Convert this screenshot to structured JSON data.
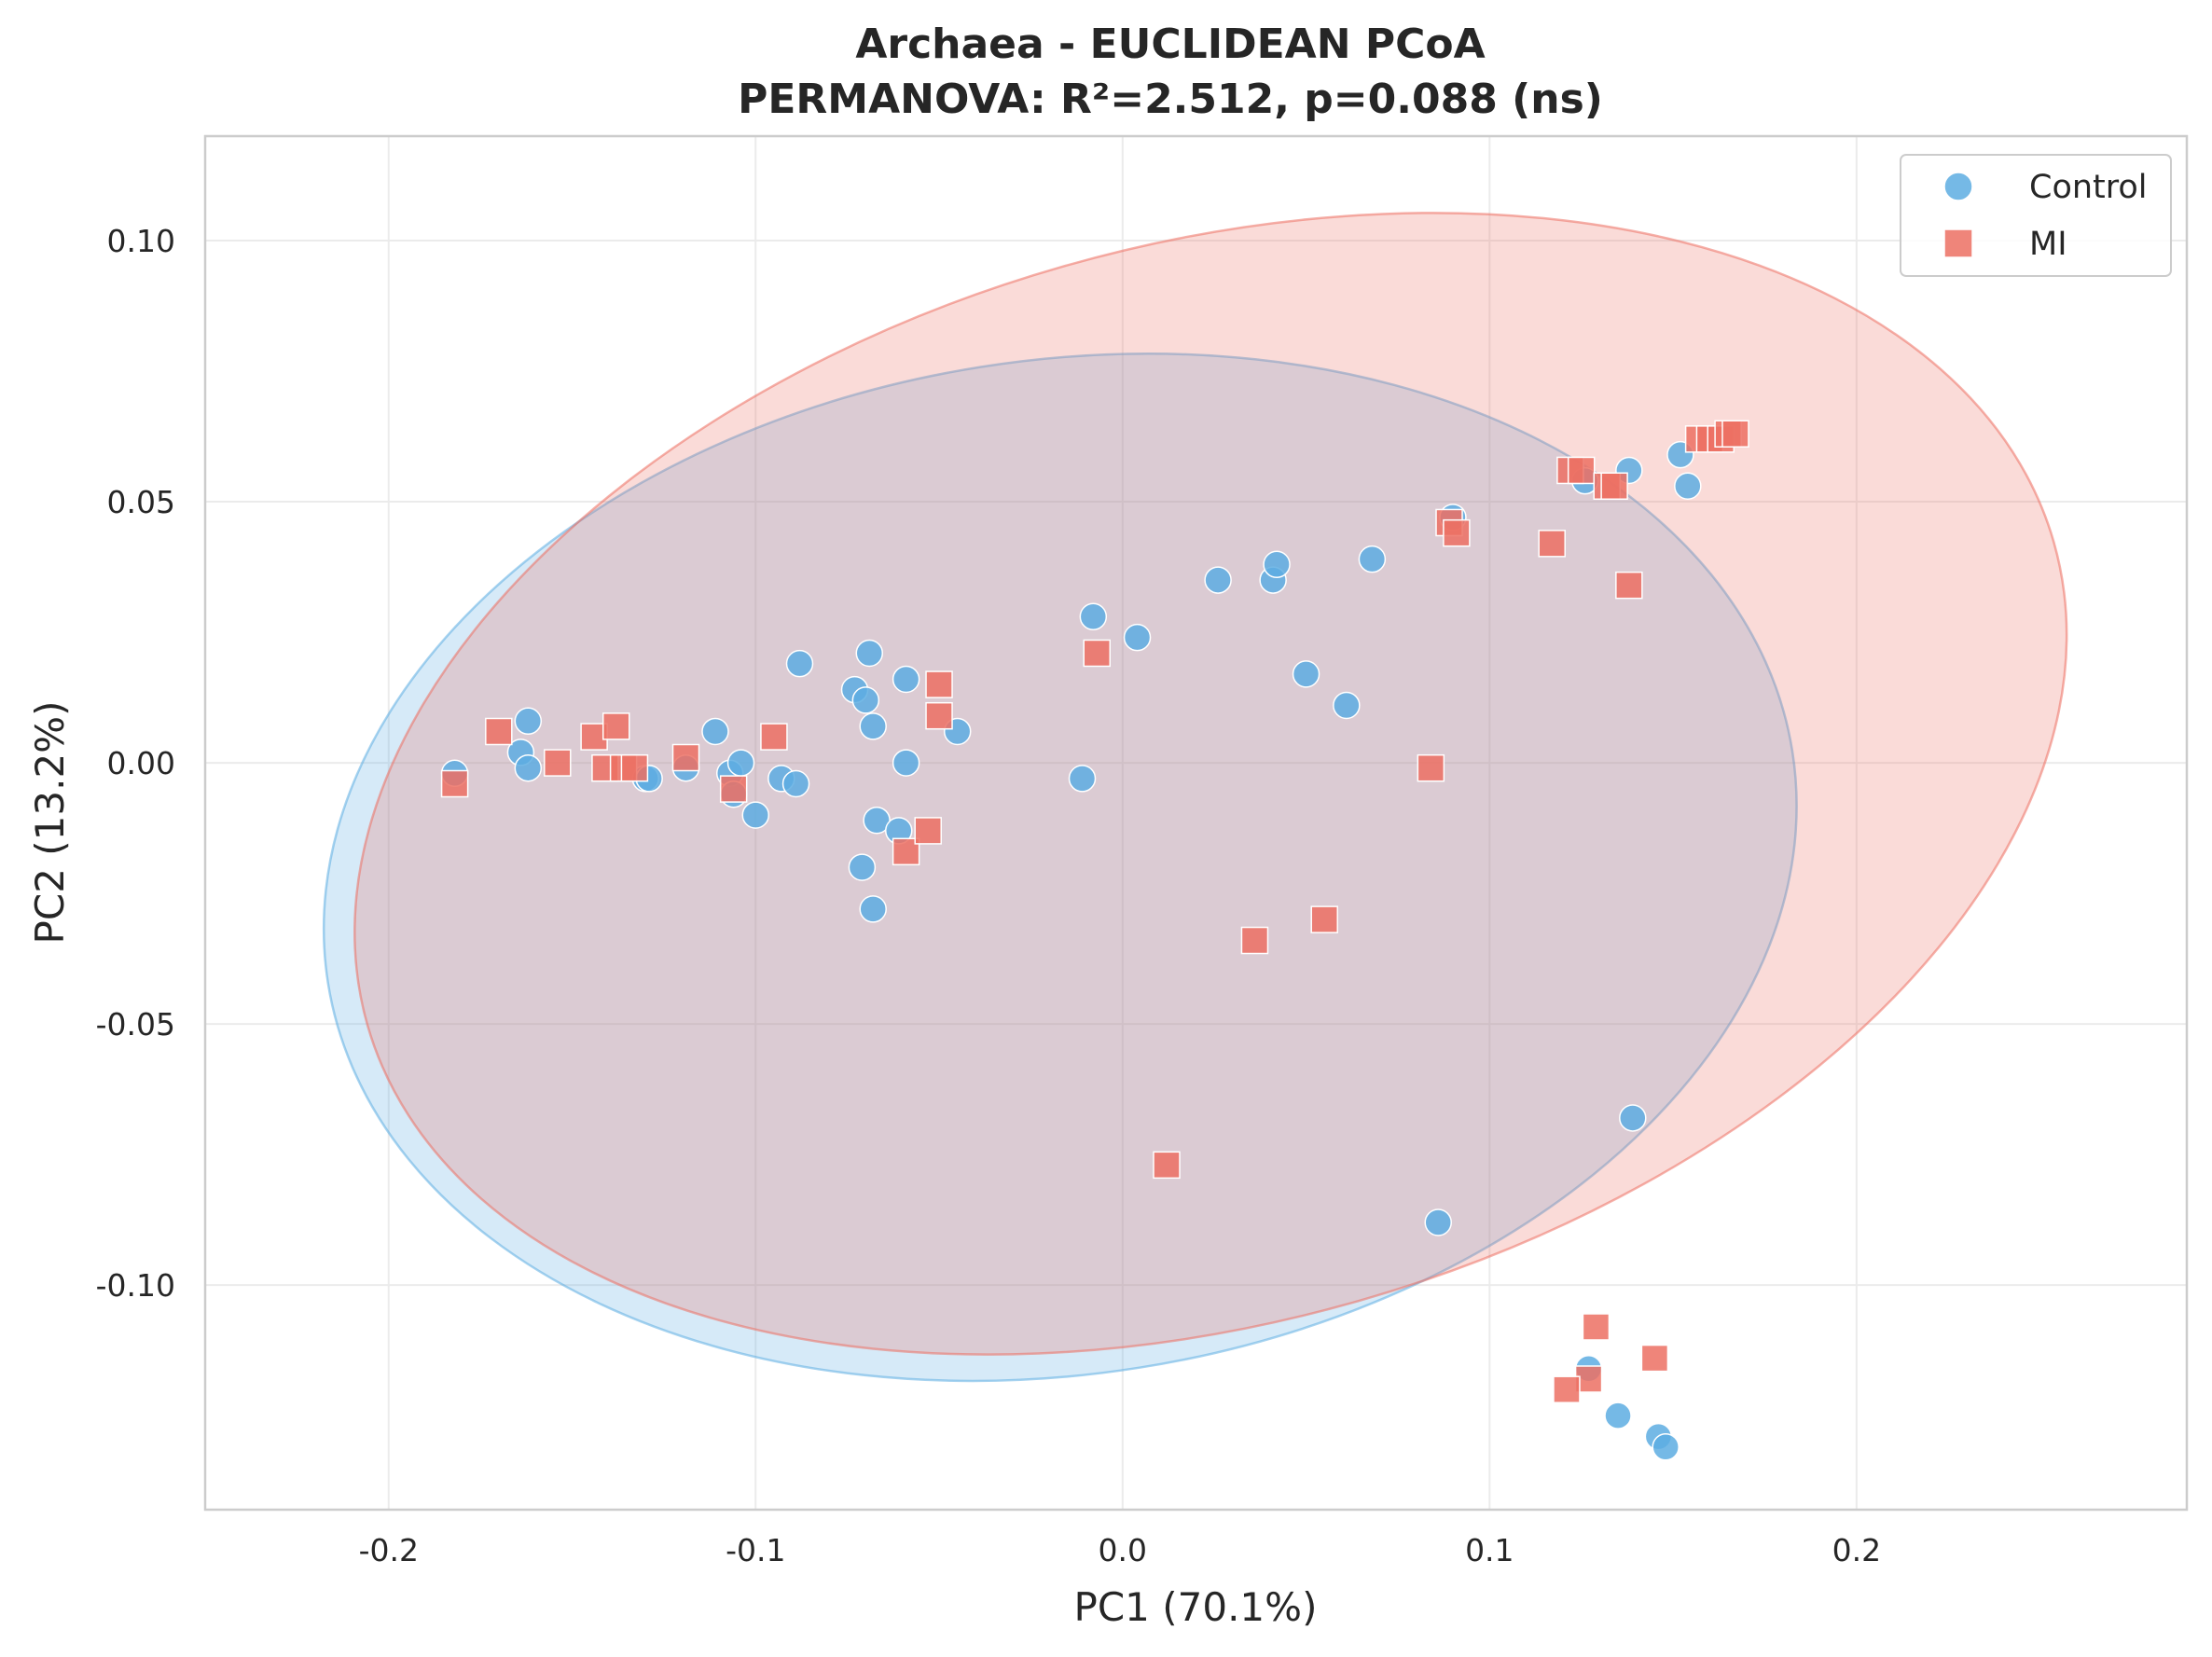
{
  "chart_data": {
    "type": "scatter",
    "title": "Archaea - EUCLIDEAN PCoA",
    "subtitle": "PERMANOVA: R²=2.512, p=0.088 (ns)",
    "xlabel": "PC1 (70.1%)",
    "ylabel": "PC2 (13.2%)",
    "xlim": [
      -0.25,
      0.29
    ],
    "ylim": [
      -0.143,
      0.12
    ],
    "xticks": [
      -0.2,
      -0.1,
      0.0,
      0.1,
      0.2
    ],
    "xtick_labels": [
      "-0.2",
      "-0.1",
      "0.0",
      "0.1",
      "0.2"
    ],
    "yticks": [
      -0.1,
      -0.05,
      0.0,
      0.05,
      0.1
    ],
    "ytick_labels": [
      "-0.10",
      "-0.05",
      "0.00",
      "0.05",
      "0.10"
    ],
    "grid": true,
    "legend_position": "top-right",
    "series": [
      {
        "name": "Control",
        "marker": "circle",
        "color": "#5DADE2",
        "points": [
          [
            -0.182,
            -0.002
          ],
          [
            -0.164,
            0.002
          ],
          [
            -0.162,
            0.008
          ],
          [
            -0.162,
            -0.001
          ],
          [
            -0.13,
            -0.003
          ],
          [
            -0.129,
            -0.003
          ],
          [
            -0.119,
            -0.001
          ],
          [
            -0.111,
            0.006
          ],
          [
            -0.107,
            -0.002
          ],
          [
            -0.106,
            -0.006
          ],
          [
            -0.104,
            0.0
          ],
          [
            -0.1,
            -0.01
          ],
          [
            -0.093,
            -0.003
          ],
          [
            -0.089,
            -0.004
          ],
          [
            -0.088,
            0.019
          ],
          [
            -0.073,
            0.014
          ],
          [
            -0.071,
            -0.02
          ],
          [
            -0.07,
            0.012
          ],
          [
            -0.069,
            0.021
          ],
          [
            -0.068,
            0.007
          ],
          [
            -0.068,
            -0.028
          ],
          [
            -0.067,
            -0.011
          ],
          [
            -0.061,
            -0.013
          ],
          [
            -0.059,
            0.016
          ],
          [
            -0.059,
            0.0
          ],
          [
            -0.045,
            0.006
          ],
          [
            -0.011,
            -0.003
          ],
          [
            -0.008,
            0.028
          ],
          [
            0.004,
            0.024
          ],
          [
            0.026,
            0.035
          ],
          [
            0.041,
            0.035
          ],
          [
            0.042,
            0.038
          ],
          [
            0.05,
            0.017
          ],
          [
            0.061,
            0.011
          ],
          [
            0.068,
            0.039
          ],
          [
            0.09,
            0.047
          ],
          [
            0.126,
            0.054
          ],
          [
            0.138,
            0.056
          ],
          [
            0.152,
            0.059
          ],
          [
            0.154,
            0.053
          ],
          [
            0.139,
            -0.068
          ],
          [
            0.086,
            -0.088
          ],
          [
            0.127,
            -0.116
          ],
          [
            0.135,
            -0.125
          ],
          [
            0.146,
            -0.129
          ],
          [
            0.148,
            -0.131
          ]
        ]
      },
      {
        "name": "MI",
        "marker": "square",
        "color": "#EC7063",
        "points": [
          [
            -0.182,
            -0.004
          ],
          [
            -0.17,
            0.006
          ],
          [
            -0.154,
            0.0
          ],
          [
            -0.144,
            0.005
          ],
          [
            -0.141,
            -0.001
          ],
          [
            -0.138,
            0.007
          ],
          [
            -0.136,
            -0.001
          ],
          [
            -0.133,
            -0.001
          ],
          [
            -0.119,
            0.001
          ],
          [
            -0.106,
            -0.005
          ],
          [
            -0.095,
            0.005
          ],
          [
            -0.059,
            -0.017
          ],
          [
            -0.053,
            -0.013
          ],
          [
            -0.05,
            0.015
          ],
          [
            -0.05,
            0.009
          ],
          [
            -0.007,
            0.021
          ],
          [
            0.012,
            -0.077
          ],
          [
            0.036,
            -0.034
          ],
          [
            0.055,
            -0.03
          ],
          [
            0.084,
            -0.001
          ],
          [
            0.089,
            0.046
          ],
          [
            0.091,
            0.044
          ],
          [
            0.117,
            0.042
          ],
          [
            0.122,
            0.056
          ],
          [
            0.125,
            0.056
          ],
          [
            0.132,
            0.053
          ],
          [
            0.134,
            0.053
          ],
          [
            0.138,
            0.034
          ],
          [
            0.157,
            0.062
          ],
          [
            0.16,
            0.062
          ],
          [
            0.163,
            0.062
          ],
          [
            0.165,
            0.063
          ],
          [
            0.167,
            0.063
          ],
          [
            0.129,
            -0.108
          ],
          [
            0.145,
            -0.114
          ],
          [
            0.127,
            -0.118
          ],
          [
            0.121,
            -0.12
          ]
        ]
      }
    ],
    "ellipses": [
      {
        "series": "Control",
        "color": "#5DADE2",
        "center": [
          -0.017,
          -0.02
        ],
        "rx": 0.202,
        "ry": 0.097,
        "angle_deg": 9
      },
      {
        "series": "MI",
        "color": "#EC7063",
        "center": [
          0.024,
          -0.004
        ],
        "rx": 0.239,
        "ry": 0.103,
        "angle_deg": 16
      }
    ]
  }
}
